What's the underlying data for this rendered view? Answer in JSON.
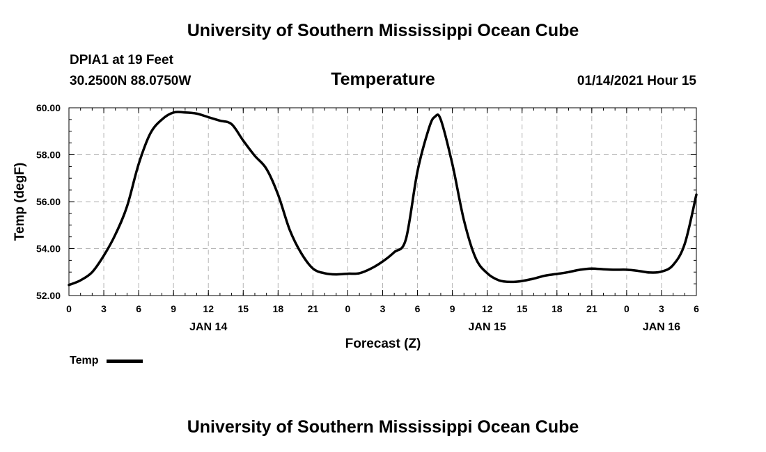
{
  "header": {
    "title_top": "University of Southern Mississippi Ocean Cube",
    "station": "DPIA1 at 19 Feet",
    "coords": "30.2500N 88.0750W",
    "variable": "Temperature",
    "datetime": "01/14/2021 Hour 15",
    "title_bottom": "University of Southern Mississippi Ocean Cube"
  },
  "chart_data": {
    "type": "line",
    "title": "Temperature",
    "xlabel": "Forecast (Z)",
    "ylabel": "Temp (degF)",
    "xlim": [
      0,
      54
    ],
    "ylim": [
      52,
      60
    ],
    "y_ticks": [
      "52.00",
      "54.00",
      "56.00",
      "58.00",
      "60.00"
    ],
    "y_tick_values": [
      52,
      54,
      56,
      58,
      60
    ],
    "x_tick_labels": [
      "0",
      "3",
      "6",
      "9",
      "12",
      "15",
      "18",
      "21",
      "0",
      "3",
      "6",
      "9",
      "12",
      "15",
      "18",
      "21",
      "0",
      "3",
      "6"
    ],
    "day_labels": [
      {
        "label": "JAN 14",
        "x": 12
      },
      {
        "label": "JAN 15",
        "x": 36
      },
      {
        "label": "JAN 16",
        "x": 51
      }
    ],
    "grid": true,
    "legend": {
      "position": "bottom-left",
      "entries": [
        "Temp"
      ]
    },
    "series": [
      {
        "name": "Temp",
        "x": [
          0,
          1,
          2,
          3,
          4,
          5,
          6,
          7,
          8,
          9,
          10,
          11,
          12,
          13,
          14,
          15,
          16,
          17,
          18,
          19,
          20,
          21,
          22,
          23,
          24,
          25,
          26,
          27,
          28,
          29,
          30,
          31,
          31.5,
          32,
          33,
          34,
          35,
          36,
          37,
          38,
          39,
          40,
          41,
          42,
          43,
          44,
          45,
          46,
          47,
          48,
          49,
          50,
          51,
          52,
          53,
          54
        ],
        "values": [
          52.45,
          52.65,
          53.0,
          53.7,
          54.6,
          55.8,
          57.6,
          58.9,
          59.5,
          59.8,
          59.8,
          59.75,
          59.6,
          59.45,
          59.3,
          58.6,
          57.95,
          57.4,
          56.3,
          54.8,
          53.8,
          53.15,
          52.95,
          52.9,
          52.93,
          52.95,
          53.15,
          53.45,
          53.85,
          54.4,
          57.3,
          59.15,
          59.62,
          59.5,
          57.6,
          55.2,
          53.6,
          52.95,
          52.65,
          52.58,
          52.62,
          52.72,
          52.85,
          52.92,
          53.0,
          53.1,
          53.15,
          53.12,
          53.1,
          53.1,
          53.05,
          52.98,
          53.02,
          53.3,
          54.2,
          56.3
        ]
      }
    ]
  },
  "legend": {
    "label": "Temp"
  }
}
